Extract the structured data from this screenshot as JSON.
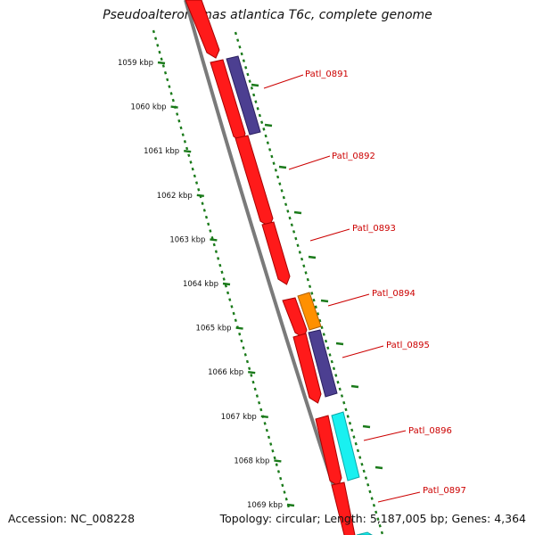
{
  "title": "Pseudoalteromonas atlantica T6c, complete genome",
  "accession": "Accession: NC_008228",
  "summary": "Topology: circular; Length: 5,187,005 bp; Genes: 4,364",
  "colors": {
    "backbone": "#7a7a7a",
    "tick": "#1a7a1a",
    "gene_label": "#cc0000",
    "cds": "#ff1a1a",
    "cds_dark": "#a80000",
    "purple": "#4c3f91",
    "purple_dark": "#2a2060",
    "orange": "#ff9000",
    "orange_dark": "#b06000",
    "cyan": "#19f0f0",
    "cyan_dark": "#0aa8a8"
  },
  "kbp_labels": [
    "1059 kbp",
    "1060 kbp",
    "1061 kbp",
    "1062 kbp",
    "1063 kbp",
    "1064 kbp",
    "1065 kbp",
    "1066 kbp",
    "1067 kbp",
    "1068 kbp",
    "1069 kbp"
  ],
  "gene_labels": [
    "Patl_0891",
    "Patl_0892",
    "Patl_0893",
    "Patl_0894",
    "Patl_0895",
    "Patl_0896",
    "Patl_0897"
  ]
}
